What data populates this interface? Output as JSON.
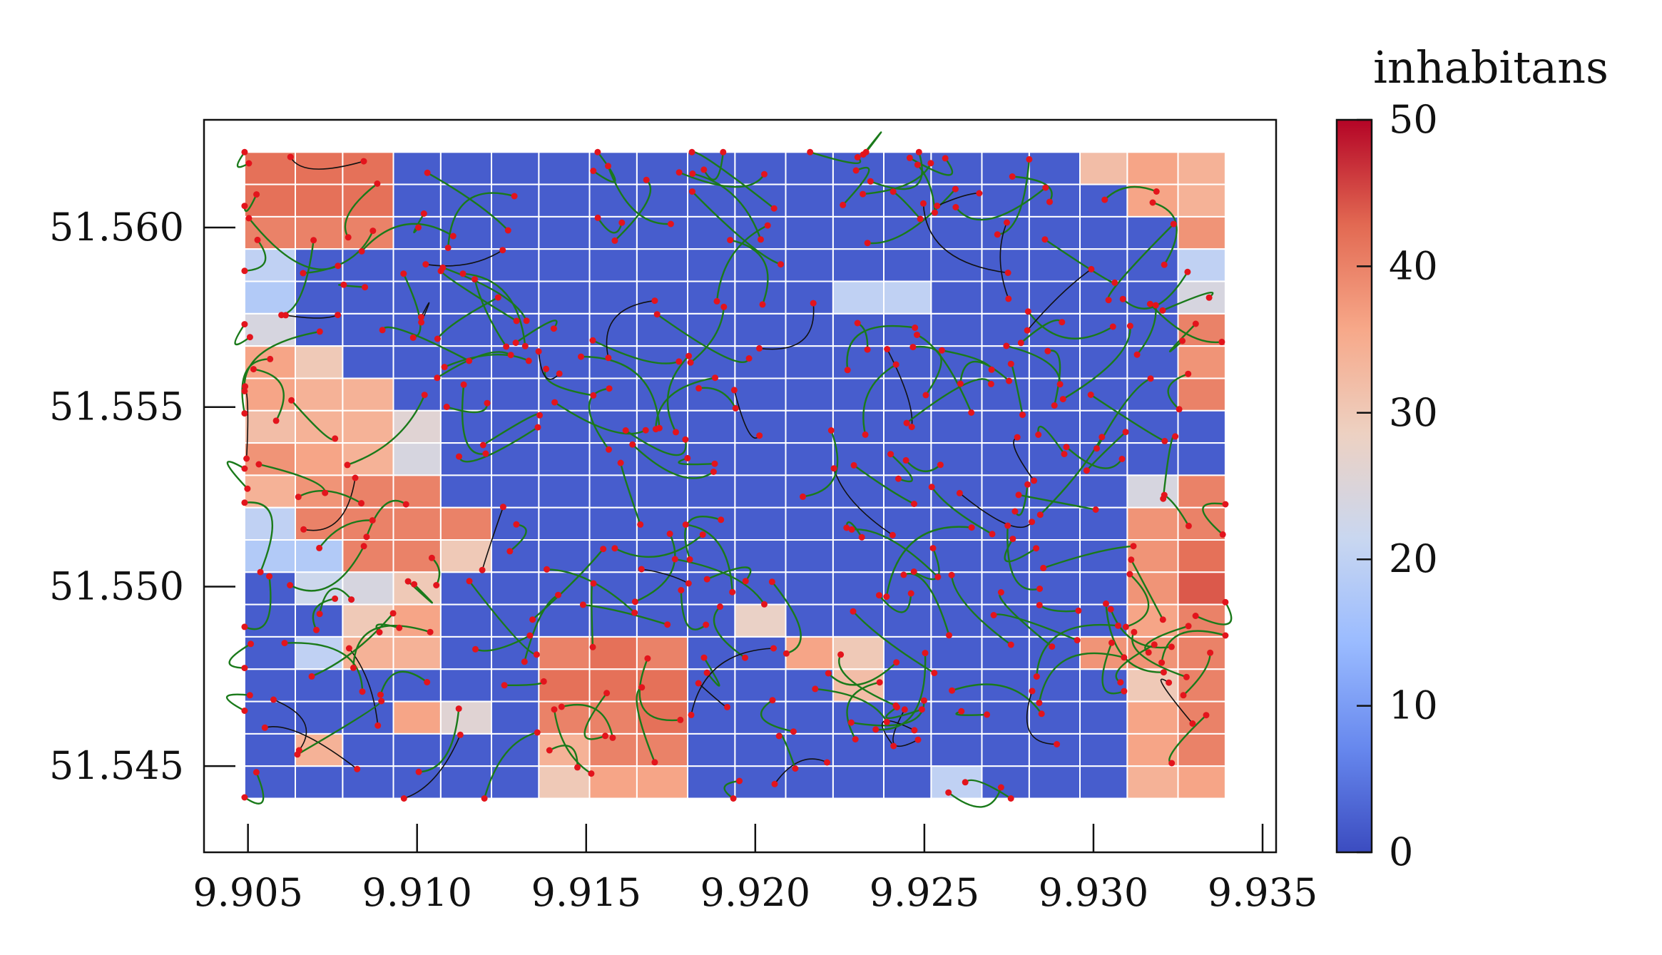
{
  "chart_data": {
    "type": "heatmap",
    "title": "",
    "xlabel": "",
    "ylabel": "",
    "xlim": [
      9.9037,
      9.9354
    ],
    "ylim": [
      51.5426,
      51.563
    ],
    "x_ticks": [
      9.905,
      9.91,
      9.915,
      9.92,
      9.925,
      9.93,
      9.935
    ],
    "x_tick_labels": [
      "9.905",
      "9.910",
      "9.915",
      "9.920",
      "9.925",
      "9.930",
      "9.935"
    ],
    "y_ticks": [
      51.545,
      51.55,
      51.555,
      51.56
    ],
    "y_tick_labels": [
      "51.545",
      "51.550",
      "51.555",
      "51.560"
    ],
    "grid": false,
    "colorbar": {
      "title": "inhabitans",
      "range": [
        0,
        50
      ],
      "ticks": [
        0,
        10,
        20,
        30,
        40,
        50
      ],
      "tick_labels": [
        "0",
        "10",
        "20",
        "30",
        "40",
        "50"
      ],
      "colormap": "coolwarm",
      "stops": [
        "#3b4cc0",
        "#6788ee",
        "#9abbff",
        "#c9d7f0",
        "#edd1c2",
        "#f7a889",
        "#e26952",
        "#b40426"
      ]
    },
    "grid_cells": {
      "x_edges": [
        9.9049,
        9.9064,
        9.9078,
        9.9093,
        9.9107,
        9.9122,
        9.9136,
        9.9151,
        9.9165,
        9.918,
        9.9194,
        9.9209,
        9.9223,
        9.9238,
        9.9252,
        9.9267,
        9.9281,
        9.9296,
        9.931,
        9.9325,
        9.9339
      ],
      "y_edges": [
        51.5621,
        51.5612,
        51.5603,
        51.5594,
        51.5585,
        51.5576,
        51.5567,
        51.5558,
        51.5549,
        51.554,
        51.5531,
        51.5522,
        51.5513,
        51.5504,
        51.5495,
        51.5486,
        51.5477,
        51.5468,
        51.5459,
        51.545,
        51.5441
      ],
      "values": [
        [
          42,
          42,
          42,
          2,
          2,
          2,
          2,
          2,
          2,
          2,
          2,
          2,
          2,
          2,
          2,
          2,
          2,
          32,
          36,
          34
        ],
        [
          42,
          42,
          42,
          2,
          2,
          2,
          2,
          2,
          2,
          2,
          2,
          2,
          2,
          2,
          2,
          2,
          2,
          2,
          36,
          34
        ],
        [
          40,
          40,
          40,
          2,
          2,
          2,
          2,
          2,
          2,
          2,
          2,
          2,
          2,
          2,
          2,
          2,
          2,
          2,
          2,
          38
        ],
        [
          20,
          2,
          2,
          2,
          2,
          2,
          2,
          2,
          2,
          2,
          2,
          2,
          2,
          2,
          2,
          2,
          2,
          2,
          2,
          20
        ],
        [
          18,
          2,
          2,
          2,
          2,
          2,
          2,
          2,
          2,
          2,
          2,
          2,
          20,
          20,
          2,
          2,
          2,
          2,
          2,
          24
        ],
        [
          24,
          2,
          2,
          2,
          2,
          2,
          2,
          2,
          2,
          2,
          2,
          2,
          2,
          2,
          2,
          2,
          2,
          2,
          2,
          40
        ],
        [
          36,
          30,
          2,
          2,
          2,
          2,
          2,
          2,
          2,
          2,
          2,
          2,
          2,
          2,
          2,
          2,
          2,
          2,
          2,
          38
        ],
        [
          36,
          34,
          34,
          2,
          2,
          2,
          2,
          2,
          2,
          2,
          2,
          2,
          2,
          2,
          2,
          2,
          2,
          2,
          2,
          40
        ],
        [
          32,
          34,
          34,
          26,
          2,
          2,
          2,
          2,
          2,
          2,
          2,
          2,
          2,
          2,
          2,
          2,
          2,
          2,
          2,
          2
        ],
        [
          38,
          36,
          34,
          24,
          2,
          2,
          2,
          2,
          2,
          2,
          2,
          2,
          2,
          2,
          2,
          2,
          2,
          2,
          2,
          2
        ],
        [
          34,
          38,
          40,
          40,
          2,
          2,
          2,
          2,
          2,
          2,
          2,
          2,
          2,
          2,
          2,
          2,
          2,
          2,
          24,
          40
        ],
        [
          20,
          40,
          40,
          40,
          40,
          2,
          2,
          2,
          2,
          2,
          2,
          2,
          2,
          2,
          2,
          2,
          2,
          2,
          38,
          40
        ],
        [
          18,
          18,
          40,
          40,
          30,
          2,
          2,
          2,
          2,
          2,
          2,
          2,
          2,
          2,
          2,
          2,
          2,
          2,
          38,
          42
        ],
        [
          2,
          22,
          24,
          30,
          2,
          2,
          2,
          2,
          2,
          2,
          2,
          2,
          2,
          2,
          2,
          2,
          2,
          2,
          38,
          44
        ],
        [
          2,
          2,
          30,
          36,
          2,
          2,
          2,
          2,
          2,
          2,
          28,
          2,
          2,
          2,
          2,
          2,
          2,
          2,
          36,
          40
        ],
        [
          2,
          20,
          34,
          34,
          2,
          2,
          40,
          42,
          40,
          2,
          2,
          36,
          30,
          2,
          2,
          2,
          2,
          38,
          38,
          40
        ],
        [
          2,
          2,
          2,
          2,
          2,
          2,
          42,
          42,
          42,
          2,
          2,
          2,
          32,
          2,
          2,
          2,
          2,
          2,
          30,
          40
        ],
        [
          2,
          2,
          2,
          36,
          26,
          2,
          40,
          40,
          42,
          2,
          2,
          2,
          2,
          2,
          2,
          2,
          2,
          2,
          36,
          40
        ],
        [
          2,
          34,
          2,
          2,
          2,
          2,
          34,
          40,
          40,
          2,
          2,
          2,
          2,
          2,
          2,
          2,
          2,
          2,
          36,
          40
        ],
        [
          2,
          2,
          2,
          2,
          2,
          2,
          30,
          36,
          36,
          2,
          2,
          2,
          2,
          2,
          20,
          2,
          2,
          2,
          34,
          36
        ]
      ]
    },
    "network": {
      "edge_color_primary": "#1a7a1a",
      "edge_color_secondary": "#111111",
      "node_color": "#e3141c"
    }
  }
}
